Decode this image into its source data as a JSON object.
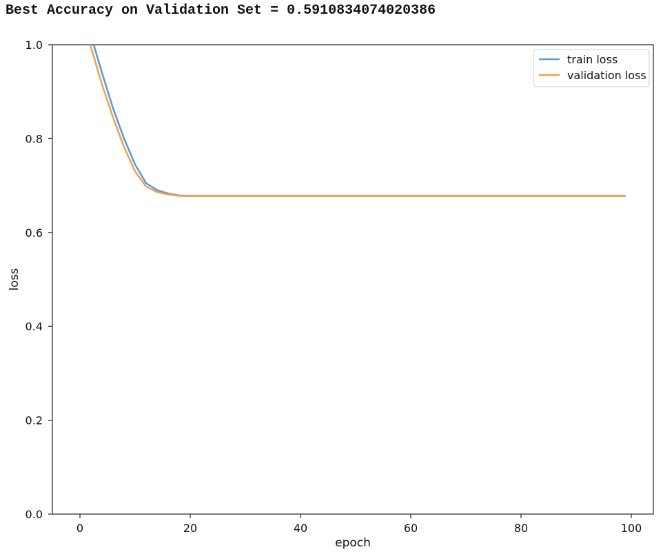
{
  "header": {
    "text": "Best Accuracy on Validation Set = 0.5910834074020386"
  },
  "chart_data": {
    "type": "line",
    "title": "",
    "xlabel": "epoch",
    "ylabel": "loss",
    "xlim": [
      -5,
      104
    ],
    "ylim": [
      0.0,
      1.0
    ],
    "xticks": [
      0,
      20,
      40,
      60,
      80,
      100
    ],
    "yticks": [
      0.0,
      0.2,
      0.4,
      0.6,
      0.8,
      1.0
    ],
    "xtick_labels": [
      "0",
      "20",
      "40",
      "60",
      "80",
      "100"
    ],
    "ytick_labels": [
      "0.0",
      "0.2",
      "0.4",
      "0.6",
      "0.8",
      "1.0"
    ],
    "grid": false,
    "legend_position": "top-right",
    "series": [
      {
        "name": "train loss",
        "color": "#5b9bd5",
        "x": [
          0,
          2,
          4,
          6,
          8,
          10,
          12,
          14,
          16,
          18,
          20,
          30,
          40,
          50,
          60,
          70,
          80,
          90,
          99
        ],
        "y": [
          1.12,
          1.02,
          0.94,
          0.865,
          0.8,
          0.745,
          0.705,
          0.69,
          0.683,
          0.679,
          0.678,
          0.678,
          0.678,
          0.678,
          0.678,
          0.678,
          0.678,
          0.678,
          0.678
        ]
      },
      {
        "name": "validation loss",
        "color": "#f5a04f",
        "x": [
          0,
          2,
          4,
          6,
          8,
          10,
          12,
          14,
          16,
          18,
          20,
          30,
          40,
          50,
          60,
          70,
          80,
          90,
          99
        ],
        "y": [
          1.1,
          0.995,
          0.915,
          0.845,
          0.782,
          0.73,
          0.698,
          0.686,
          0.681,
          0.678,
          0.678,
          0.678,
          0.678,
          0.678,
          0.678,
          0.678,
          0.678,
          0.678,
          0.678
        ]
      }
    ]
  }
}
